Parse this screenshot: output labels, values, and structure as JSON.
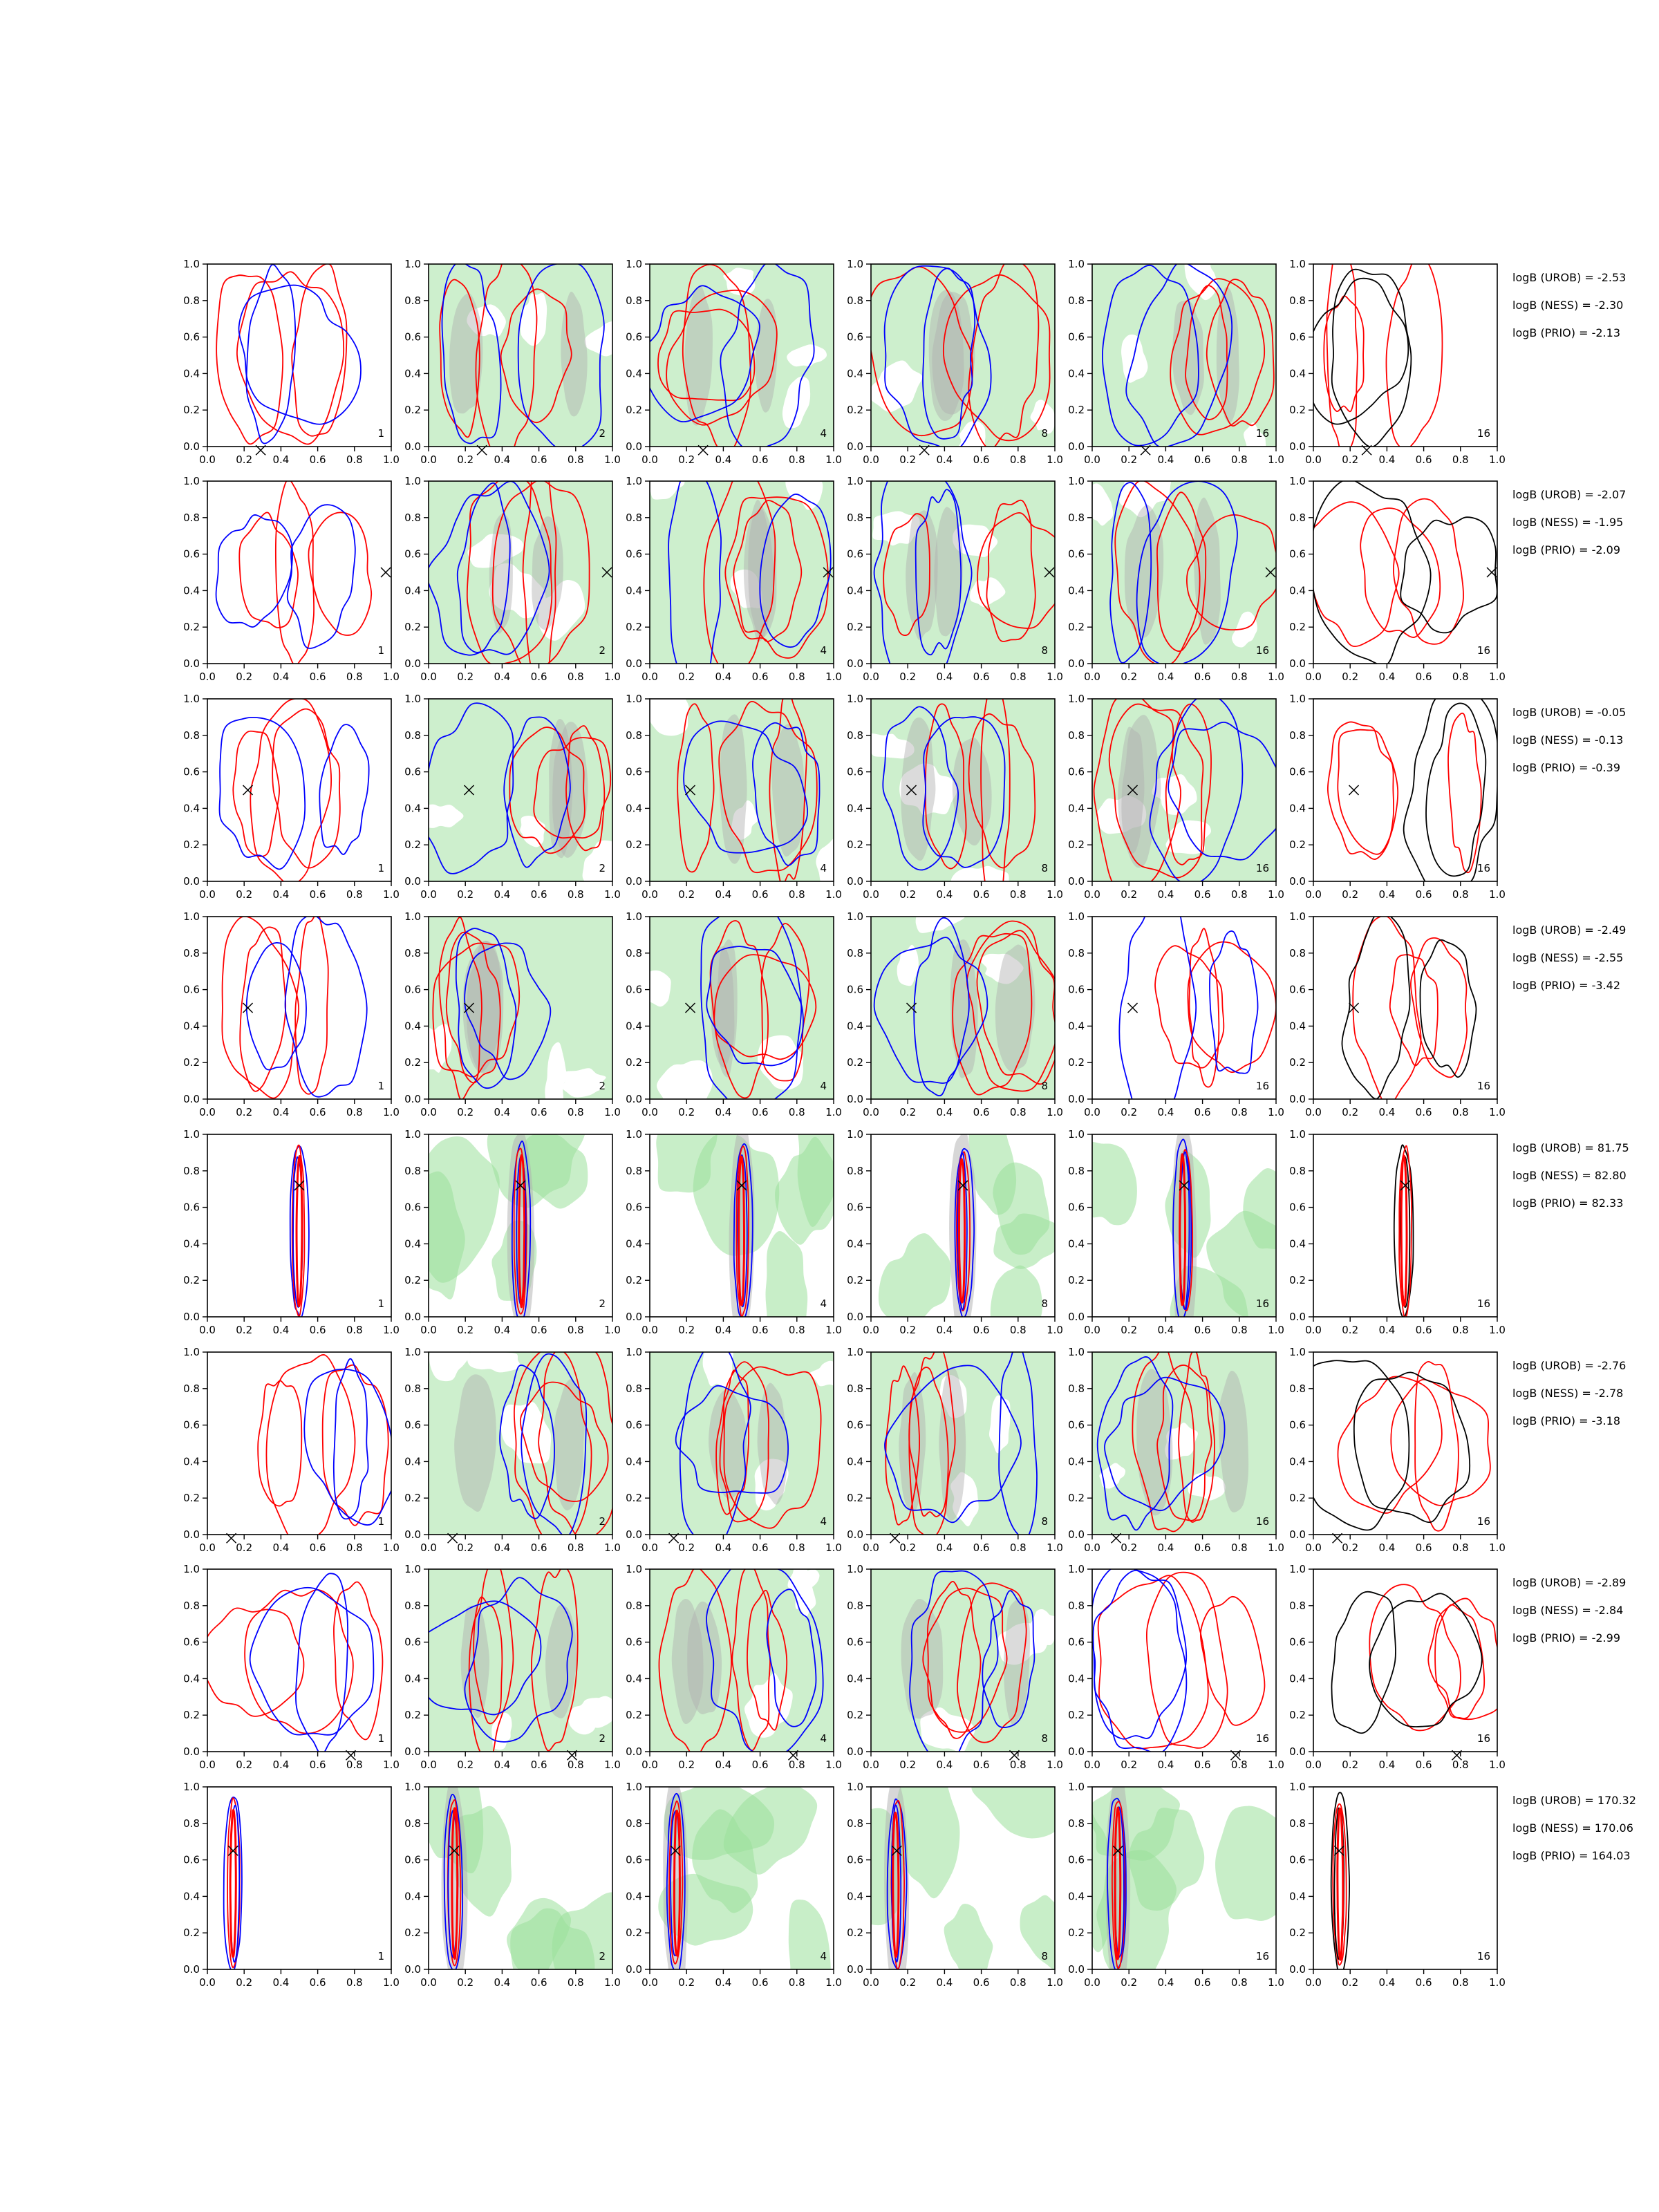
{
  "chart_data": {
    "type": "contour",
    "title": "",
    "xlim": [
      0,
      1
    ],
    "ylim": [
      0,
      1
    ],
    "ticks": [
      "0.0",
      "0.2",
      "0.4",
      "0.6",
      "0.8",
      "1.0"
    ],
    "grid": false,
    "colors": {
      "blue": "#0000ff",
      "red": "#ff0000",
      "black": "#000000",
      "green_fill": "#9be09b",
      "gray_fill": "#b0b0b0"
    },
    "columns": [
      {
        "label": "1"
      },
      {
        "label": "2"
      },
      {
        "label": "4"
      },
      {
        "label": "8"
      },
      {
        "label": "16"
      },
      {
        "label": "16"
      }
    ],
    "rows": [
      {
        "marker": [
          0.29,
          -0.02
        ],
        "logB": [
          "logB (UROB) = -2.53",
          "logB (NESS) = -2.30",
          "logB (PRIO) = -2.13"
        ]
      },
      {
        "marker": [
          0.97,
          0.5
        ],
        "logB": [
          "logB (UROB) = -2.07",
          "logB (NESS) = -1.95",
          "logB (PRIO) = -2.09"
        ]
      },
      {
        "marker": [
          0.22,
          0.5
        ],
        "logB": [
          "logB (UROB) = -0.05",
          "logB (NESS) = -0.13",
          "logB (PRIO) = -0.39"
        ]
      },
      {
        "marker": [
          0.22,
          0.5
        ],
        "logB": [
          "logB (UROB) = -2.49",
          "logB (NESS) = -2.55",
          "logB (PRIO) = -3.42"
        ]
      },
      {
        "marker": [
          0.5,
          0.72
        ],
        "logB": [
          "logB (UROB) = 81.75",
          "logB (NESS) = 82.80",
          "logB (PRIO) = 82.33"
        ]
      },
      {
        "marker": [
          0.13,
          -0.02
        ],
        "logB": [
          "logB (UROB) = -2.76",
          "logB (NESS) = -2.78",
          "logB (PRIO) = -3.18"
        ]
      },
      {
        "marker": [
          0.78,
          -0.02
        ],
        "logB": [
          "logB (UROB) = -2.89",
          "logB (NESS) = -2.84",
          "logB (PRIO) = -2.99"
        ]
      },
      {
        "marker": [
          0.14,
          0.65
        ],
        "logB": [
          "logB (UROB) = 170.32",
          "logB (NESS) = 170.06",
          "logB (PRIO) = 164.03"
        ]
      }
    ]
  }
}
